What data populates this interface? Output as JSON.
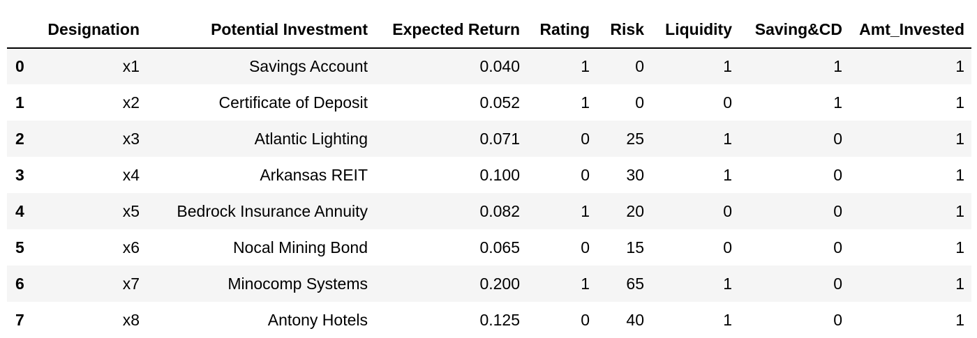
{
  "table": {
    "columns": [
      "",
      "Designation",
      "Potential Investment",
      "Expected Return",
      "Rating",
      "Risk",
      "Liquidity",
      "Saving&CD",
      "Amt_Invested"
    ],
    "rows": [
      {
        "index": "0",
        "cells": [
          "x1",
          "Savings Account",
          "0.040",
          "1",
          "0",
          "1",
          "1",
          "1"
        ]
      },
      {
        "index": "1",
        "cells": [
          "x2",
          "Certificate of Deposit",
          "0.052",
          "1",
          "0",
          "0",
          "1",
          "1"
        ]
      },
      {
        "index": "2",
        "cells": [
          "x3",
          "Atlantic Lighting",
          "0.071",
          "0",
          "25",
          "1",
          "0",
          "1"
        ]
      },
      {
        "index": "3",
        "cells": [
          "x4",
          "Arkansas REIT",
          "0.100",
          "0",
          "30",
          "1",
          "0",
          "1"
        ]
      },
      {
        "index": "4",
        "cells": [
          "x5",
          "Bedrock Insurance Annuity",
          "0.082",
          "1",
          "20",
          "0",
          "0",
          "1"
        ]
      },
      {
        "index": "5",
        "cells": [
          "x6",
          "Nocal Mining Bond",
          "0.065",
          "0",
          "15",
          "0",
          "0",
          "1"
        ]
      },
      {
        "index": "6",
        "cells": [
          "x7",
          "Minocomp Systems",
          "0.200",
          "1",
          "65",
          "1",
          "0",
          "1"
        ]
      },
      {
        "index": "7",
        "cells": [
          "x8",
          "Antony Hotels",
          "0.125",
          "0",
          "40",
          "1",
          "0",
          "1"
        ]
      }
    ]
  },
  "colors": {
    "stripe": "#f5f5f5",
    "background": "#ffffff",
    "header_rule": "#000000"
  }
}
